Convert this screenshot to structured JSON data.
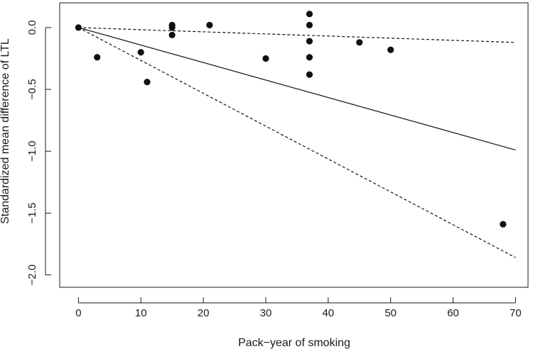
{
  "chart_data": {
    "type": "scatter",
    "title": "",
    "xlabel": "Pack−year of smoking",
    "ylabel": "Standardized mean difference of LTL",
    "xlim": [
      -3,
      72
    ],
    "ylim": [
      -2.1,
      0.2
    ],
    "x_ticks": [
      0,
      10,
      20,
      30,
      40,
      50,
      60,
      70
    ],
    "x_tick_labels": [
      "0",
      "10",
      "20",
      "30",
      "40",
      "50",
      "60",
      "70"
    ],
    "y_ticks": [
      0.0,
      -0.5,
      -1.0,
      -1.5,
      -2.0
    ],
    "y_tick_labels": [
      "0.0",
      "−0.5",
      "−1.0",
      "−1.5",
      "−2.0"
    ],
    "grid": false,
    "legend": "none",
    "points": [
      {
        "x": 0,
        "y": 0.0
      },
      {
        "x": 3,
        "y": -0.24
      },
      {
        "x": 10,
        "y": -0.2
      },
      {
        "x": 11,
        "y": -0.44
      },
      {
        "x": 15,
        "y": 0.02
      },
      {
        "x": 15,
        "y": 0.0
      },
      {
        "x": 15,
        "y": -0.06
      },
      {
        "x": 21,
        "y": 0.02
      },
      {
        "x": 30,
        "y": -0.25
      },
      {
        "x": 37,
        "y": 0.11
      },
      {
        "x": 37,
        "y": 0.02
      },
      {
        "x": 37,
        "y": -0.11
      },
      {
        "x": 37,
        "y": -0.24
      },
      {
        "x": 37,
        "y": -0.38
      },
      {
        "x": 45,
        "y": -0.12
      },
      {
        "x": 50,
        "y": -0.18
      },
      {
        "x": 68,
        "y": -1.59
      }
    ],
    "lines": [
      {
        "style": "solid",
        "x": [
          0,
          70
        ],
        "y": [
          0,
          -0.99
        ]
      },
      {
        "style": "dashed",
        "x": [
          0,
          70
        ],
        "y": [
          0,
          -0.12
        ]
      },
      {
        "style": "dashed",
        "x": [
          0,
          70
        ],
        "y": [
          0,
          -1.86
        ]
      }
    ],
    "colors": {
      "points": "#111111",
      "lines": "#111111",
      "axis": "#1a1a1a"
    }
  }
}
